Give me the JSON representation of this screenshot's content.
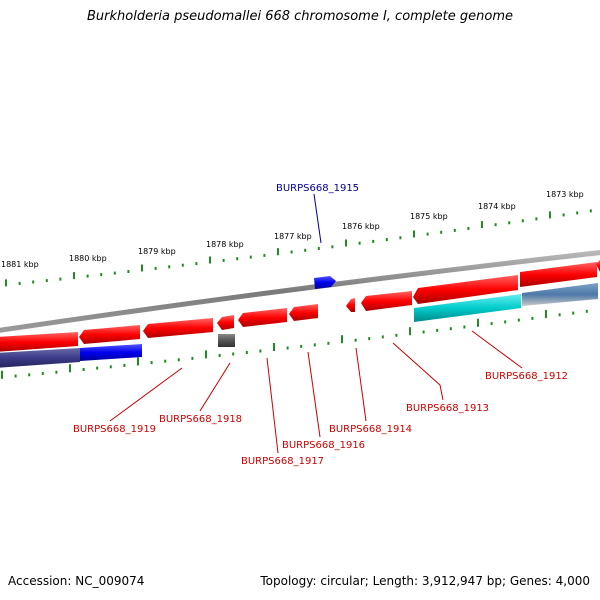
{
  "title": "Burkholderia pseudomallei 668 chromosome I, complete genome",
  "footer": {
    "accession": "Accession: NC_009074",
    "summary": "Topology: circular; Length: 3,912,947 bp; Genes: 4,000"
  },
  "colors": {
    "forward_gene": "#ff0000",
    "reverse_gene": "#ff0000",
    "blue_gene": "#0000ee",
    "dark_gene": "#555555",
    "cyan_gene": "#00cccc",
    "navy_gene": "#3a3a88",
    "backbone": "#808080",
    "ticks": "#228b22",
    "label_red": "#cc0000",
    "label_blue": "#000099"
  },
  "scale_labels": [
    "1881 kbp",
    "1880 kbp",
    "1879 kbp",
    "1878 kbp",
    "1877 kbp",
    "1876 kbp",
    "1875 kbp",
    "1874 kbp",
    "1873 kbp"
  ],
  "gene_labels": [
    {
      "id": "BURPS668_1915",
      "color": "blue"
    },
    {
      "id": "BURPS668_1912",
      "color": "red"
    },
    {
      "id": "BURPS668_1913",
      "color": "red"
    },
    {
      "id": "BURPS668_1914",
      "color": "red"
    },
    {
      "id": "BURPS668_1916",
      "color": "red"
    },
    {
      "id": "BURPS668_1917",
      "color": "red"
    },
    {
      "id": "BURPS668_1918",
      "color": "red"
    },
    {
      "id": "BURPS668_1919",
      "color": "red"
    }
  ]
}
